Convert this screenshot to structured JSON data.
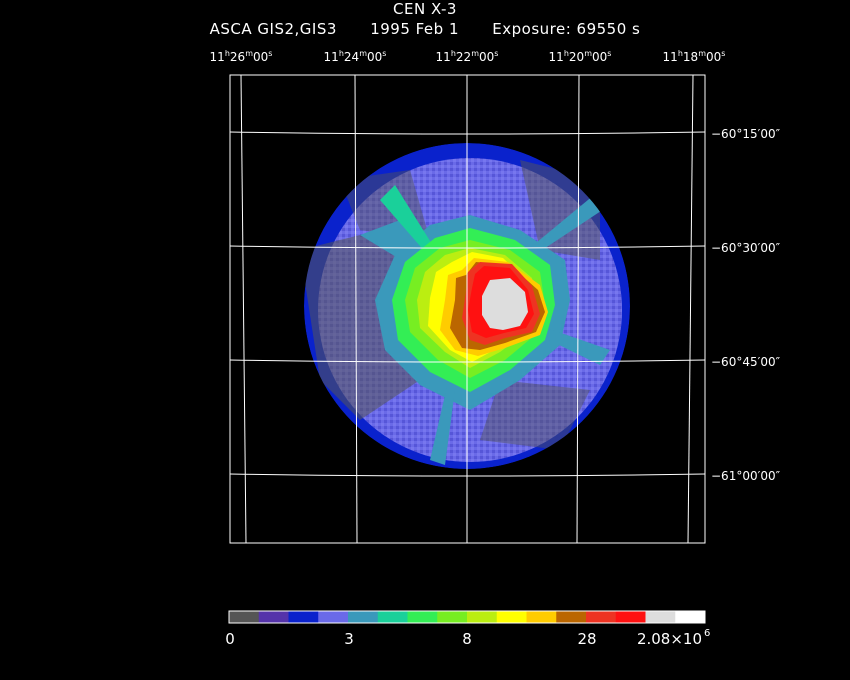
{
  "header": {
    "object": "CEN X-3",
    "instrument": "ASCA GIS2,GIS3",
    "date": "1995 Feb  1",
    "exposure": "Exposure: 69550 s"
  },
  "ra_labels": [
    {
      "h": "11",
      "m": "26",
      "s": "00"
    },
    {
      "h": "11",
      "m": "24",
      "s": "00"
    },
    {
      "h": "11",
      "m": "22",
      "s": "00"
    },
    {
      "h": "11",
      "m": "20",
      "s": "00"
    },
    {
      "h": "11",
      "m": "18",
      "s": "00"
    }
  ],
  "dec_labels": [
    "−60°15′00″",
    "−60°30′00″",
    "−60°45′00″",
    "−61°00′00″"
  ],
  "colorbar": {
    "colors": [
      "#555555",
      "#5533aa",
      "#0a22cc",
      "#6a6ae8",
      "#3a99bb",
      "#1ad09a",
      "#33ee55",
      "#77ee22",
      "#bbee11",
      "#ffff00",
      "#ffcc00",
      "#bb6600",
      "#ee3322",
      "#ff1111",
      "#dddddd",
      "#ffffff"
    ],
    "ticks": [
      "0",
      "3",
      "8",
      "28",
      "2.08×10"
    ],
    "top_exponent": "6"
  }
}
